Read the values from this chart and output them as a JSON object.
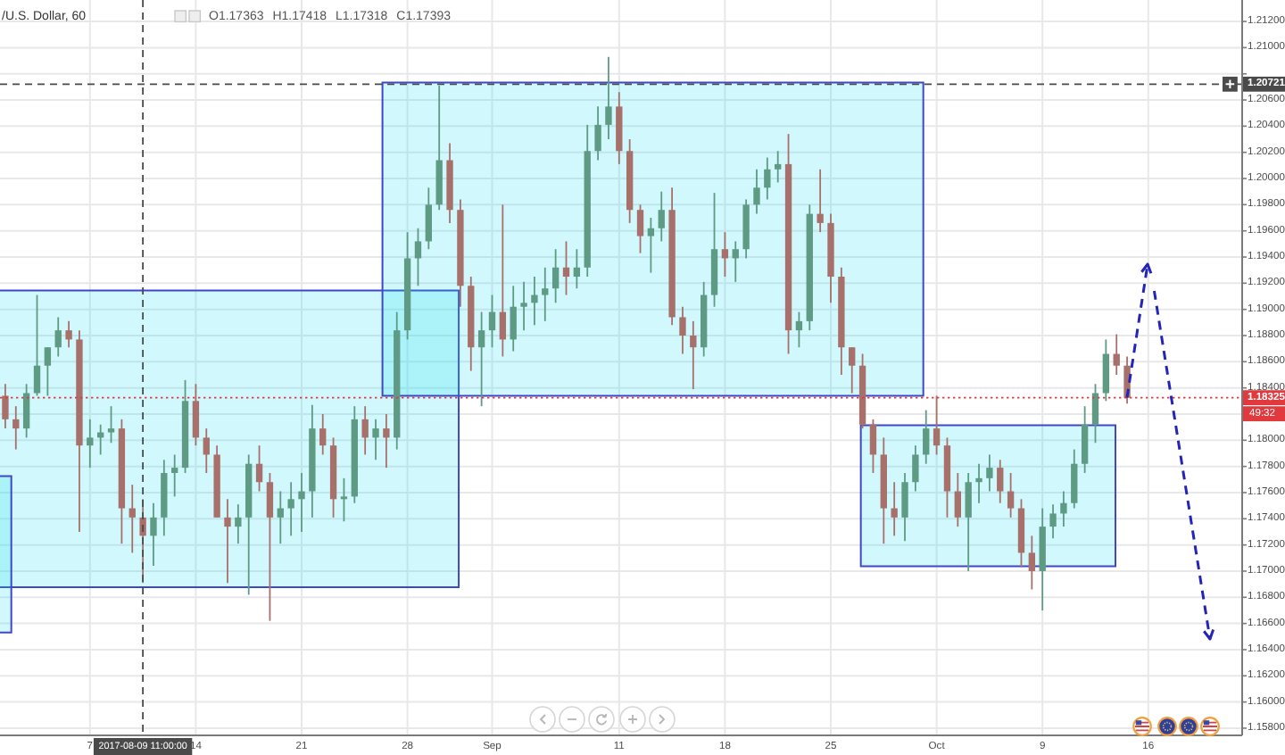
{
  "chart_data": {
    "type": "candlestick",
    "title": "/U.S. Dollar, 60",
    "categories": [
      null,
      null,
      null,
      null,
      null,
      null,
      null,
      null,
      "7",
      null,
      null,
      null,
      null,
      "2017-08-09 11:00:00",
      null,
      null,
      null,
      null,
      "14",
      null,
      null,
      null,
      null,
      null,
      null,
      null,
      null,
      null,
      "21",
      null,
      null,
      null,
      null,
      null,
      null,
      null,
      null,
      null,
      "28",
      null,
      null,
      null,
      null,
      null,
      null,
      null,
      "Sep",
      null,
      null,
      null,
      null,
      null,
      null,
      null,
      null,
      null,
      null,
      null,
      "11",
      null,
      null,
      null,
      null,
      null,
      null,
      null,
      null,
      null,
      "18",
      null,
      null,
      null,
      null,
      null,
      null,
      null,
      null,
      null,
      "25",
      null,
      null,
      null,
      null,
      null,
      null,
      null,
      null,
      null,
      "Oct",
      null,
      null,
      null,
      null,
      null,
      null,
      null,
      null,
      null,
      "9",
      null,
      null,
      null,
      null,
      null,
      null,
      null,
      null,
      null,
      "16",
      null,
      null,
      null,
      null,
      null,
      null,
      null,
      null
    ],
    "ohlc": [
      [
        1.1834,
        1.1843,
        1.1809,
        1.1816
      ],
      [
        1.1816,
        1.1826,
        1.1793,
        1.1809
      ],
      [
        1.1809,
        1.1843,
        1.1802,
        1.1836
      ],
      [
        1.1836,
        1.1911,
        1.1834,
        1.1857
      ],
      [
        1.1857,
        1.1871,
        1.1834,
        1.1871
      ],
      [
        1.1871,
        1.1894,
        1.1864,
        1.1884
      ],
      [
        1.1884,
        1.1891,
        1.1871,
        1.1877
      ],
      [
        1.1877,
        1.1884,
        1.173,
        1.1796
      ],
      [
        1.1796,
        1.1816,
        1.1779,
        1.1802
      ],
      [
        1.1802,
        1.1812,
        1.1789,
        1.1806
      ],
      [
        1.1806,
        1.1826,
        1.1798,
        1.1809
      ],
      [
        1.1809,
        1.1816,
        1.1721,
        1.1748
      ],
      [
        1.1748,
        1.1766,
        1.1714,
        1.1741
      ],
      [
        1.1741,
        1.1755,
        1.1691,
        1.1727
      ],
      [
        1.1727,
        1.1752,
        1.1704,
        1.1741
      ],
      [
        1.1741,
        1.1785,
        1.1727,
        1.1775
      ],
      [
        1.1775,
        1.1789,
        1.1757,
        1.1779
      ],
      [
        1.1779,
        1.1846,
        1.1775,
        1.183
      ],
      [
        1.183,
        1.1843,
        1.1796,
        1.1802
      ],
      [
        1.1802,
        1.1809,
        1.1775,
        1.1789
      ],
      [
        1.1789,
        1.1796,
        1.1741,
        1.1741
      ],
      [
        1.1741,
        1.1755,
        1.1691,
        1.1734
      ],
      [
        1.1734,
        1.1751,
        1.1721,
        1.1741
      ],
      [
        1.1741,
        1.1789,
        1.1682,
        1.1782
      ],
      [
        1.1782,
        1.1796,
        1.1761,
        1.1768
      ],
      [
        1.1768,
        1.1775,
        1.1662,
        1.1741
      ],
      [
        1.1741,
        1.1761,
        1.1721,
        1.1748
      ],
      [
        1.1748,
        1.1768,
        1.1727,
        1.1755
      ],
      [
        1.1755,
        1.1775,
        1.173,
        1.1761
      ],
      [
        1.1761,
        1.1827,
        1.1741,
        1.1809
      ],
      [
        1.1809,
        1.182,
        1.1789,
        1.1796
      ],
      [
        1.1796,
        1.1802,
        1.1741,
        1.1755
      ],
      [
        1.1755,
        1.1771,
        1.1738,
        1.1757
      ],
      [
        1.1757,
        1.1826,
        1.1752,
        1.1816
      ],
      [
        1.1816,
        1.1826,
        1.1789,
        1.1802
      ],
      [
        1.1802,
        1.1816,
        1.1785,
        1.1809
      ],
      [
        1.1809,
        1.182,
        1.1779,
        1.1802
      ],
      [
        1.1802,
        1.1898,
        1.1793,
        1.1884
      ],
      [
        1.1884,
        1.1959,
        1.1877,
        1.1939
      ],
      [
        1.1939,
        1.1962,
        1.1918,
        1.1952
      ],
      [
        1.1952,
        1.1993,
        1.1946,
        1.198
      ],
      [
        1.198,
        1.2071,
        1.1976,
        1.2014
      ],
      [
        1.2014,
        1.2027,
        1.1966,
        1.1976
      ],
      [
        1.1976,
        1.1984,
        1.1902,
        1.1918
      ],
      [
        1.1918,
        1.1925,
        1.1853,
        1.1871
      ],
      [
        1.1871,
        1.1898,
        1.1826,
        1.1884
      ],
      [
        1.1884,
        1.1911,
        1.1871,
        1.1898
      ],
      [
        1.1898,
        1.198,
        1.1864,
        1.1877
      ],
      [
        1.1877,
        1.1918,
        1.1868,
        1.1902
      ],
      [
        1.1902,
        1.1921,
        1.1884,
        1.1905
      ],
      [
        1.1905,
        1.1925,
        1.1888,
        1.1911
      ],
      [
        1.1911,
        1.1932,
        1.1891,
        1.1916
      ],
      [
        1.1916,
        1.1946,
        1.1905,
        1.1932
      ],
      [
        1.1932,
        1.1952,
        1.1911,
        1.1925
      ],
      [
        1.1925,
        1.1946,
        1.1916,
        1.1932
      ],
      [
        1.1932,
        1.2041,
        1.1925,
        1.2021
      ],
      [
        1.2021,
        1.2055,
        1.2014,
        1.2041
      ],
      [
        1.2041,
        1.2093,
        1.203,
        1.2055
      ],
      [
        1.2055,
        1.2066,
        1.2011,
        1.2021
      ],
      [
        1.2021,
        1.203,
        1.1966,
        1.1976
      ],
      [
        1.1976,
        1.198,
        1.1943,
        1.1956
      ],
      [
        1.1956,
        1.197,
        1.1928,
        1.1962
      ],
      [
        1.1962,
        1.199,
        1.1952,
        1.1976
      ],
      [
        1.1976,
        1.1993,
        1.1888,
        1.1894
      ],
      [
        1.1894,
        1.1902,
        1.1866,
        1.188
      ],
      [
        1.188,
        1.1891,
        1.1839,
        1.1871
      ],
      [
        1.1871,
        1.1921,
        1.1864,
        1.1911
      ],
      [
        1.1911,
        1.1989,
        1.1902,
        1.1946
      ],
      [
        1.1946,
        1.1959,
        1.1925,
        1.1939
      ],
      [
        1.1939,
        1.1952,
        1.1921,
        1.1946
      ],
      [
        1.1946,
        1.1984,
        1.1939,
        1.198
      ],
      [
        1.198,
        1.2007,
        1.1973,
        1.1993
      ],
      [
        1.1993,
        1.2016,
        1.1984,
        1.2007
      ],
      [
        1.2007,
        1.2021,
        1.1997,
        1.2011
      ],
      [
        1.2011,
        1.2034,
        1.1866,
        1.1884
      ],
      [
        1.1884,
        1.1898,
        1.1871,
        1.1891
      ],
      [
        1.1891,
        1.198,
        1.1884,
        1.1973
      ],
      [
        1.1973,
        1.2007,
        1.1959,
        1.1966
      ],
      [
        1.1966,
        1.1973,
        1.1905,
        1.1925
      ],
      [
        1.1925,
        1.1932,
        1.185,
        1.1871
      ],
      [
        1.1871,
        1.1871,
        1.1836,
        1.1857
      ],
      [
        1.1857,
        1.1866,
        1.1809,
        1.1812
      ],
      [
        1.1812,
        1.1816,
        1.1775,
        1.1789
      ],
      [
        1.1789,
        1.1802,
        1.1721,
        1.1748
      ],
      [
        1.1748,
        1.1768,
        1.1727,
        1.1741
      ],
      [
        1.1741,
        1.1775,
        1.1723,
        1.1768
      ],
      [
        1.1768,
        1.1796,
        1.1761,
        1.1789
      ],
      [
        1.1789,
        1.1823,
        1.1782,
        1.1809
      ],
      [
        1.1809,
        1.1834,
        1.1789,
        1.1796
      ],
      [
        1.1796,
        1.1802,
        1.1741,
        1.1761
      ],
      [
        1.1761,
        1.1775,
        1.1734,
        1.1741
      ],
      [
        1.1741,
        1.1775,
        1.17,
        1.1768
      ],
      [
        1.1768,
        1.1782,
        1.1752,
        1.1771
      ],
      [
        1.1771,
        1.1789,
        1.1761,
        1.1779
      ],
      [
        1.1779,
        1.1785,
        1.1752,
        1.1761
      ],
      [
        1.1761,
        1.1775,
        1.1741,
        1.1748
      ],
      [
        1.1748,
        1.1755,
        1.1703,
        1.1714
      ],
      [
        1.1714,
        1.1727,
        1.1686,
        1.17
      ],
      [
        1.17,
        1.1748,
        1.167,
        1.1734
      ],
      [
        1.1734,
        1.1751,
        1.1725,
        1.1744
      ],
      [
        1.1744,
        1.1761,
        1.1734,
        1.1752
      ],
      [
        1.1752,
        1.1793,
        1.1748,
        1.1782
      ],
      [
        1.1782,
        1.1826,
        1.1775,
        1.1812
      ],
      [
        1.1812,
        1.1843,
        1.1798,
        1.1836
      ],
      [
        1.1836,
        1.1877,
        1.183,
        1.1866
      ],
      [
        1.1866,
        1.1881,
        1.185,
        1.1857
      ],
      [
        1.1857,
        1.1864,
        1.1828,
        1.18325
      ],
      null,
      null,
      null,
      null,
      null,
      null,
      null,
      null,
      null,
      null
    ],
    "ylim": [
      1.15745,
      1.21364
    ],
    "yticks": [
      {
        "value": 1.158,
        "label": "1.15800"
      },
      {
        "value": 1.16,
        "label": "1.16000"
      },
      {
        "value": 1.162,
        "label": "1.16200"
      },
      {
        "value": 1.164,
        "label": "1.16400"
      },
      {
        "value": 1.166,
        "label": "1.16600"
      },
      {
        "value": 1.168,
        "label": "1.16800"
      },
      {
        "value": 1.17,
        "label": "1.17000"
      },
      {
        "value": 1.172,
        "label": "1.17200"
      },
      {
        "value": 1.174,
        "label": "1.17400"
      },
      {
        "value": 1.176,
        "label": "1.17600"
      },
      {
        "value": 1.178,
        "label": "1.17800"
      },
      {
        "value": 1.18,
        "label": "1.18000"
      },
      {
        "value": 1.182,
        "label": null
      },
      {
        "value": 1.184,
        "label": "1.18400"
      },
      {
        "value": 1.186,
        "label": "1.18600"
      },
      {
        "value": 1.188,
        "label": "1.18800"
      },
      {
        "value": 1.19,
        "label": "1.19000"
      },
      {
        "value": 1.192,
        "label": "1.19200"
      },
      {
        "value": 1.194,
        "label": "1.19400"
      },
      {
        "value": 1.196,
        "label": "1.19600"
      },
      {
        "value": 1.198,
        "label": "1.19800"
      },
      {
        "value": 1.2,
        "label": "1.20000"
      },
      {
        "value": 1.202,
        "label": "1.20200"
      },
      {
        "value": 1.204,
        "label": "1.20400"
      },
      {
        "value": 1.206,
        "label": "1.20600"
      },
      {
        "value": 1.208,
        "label": null
      },
      {
        "value": 1.21,
        "label": "1.21000"
      },
      {
        "value": 1.212,
        "label": "1.21200"
      }
    ],
    "grid": true,
    "ref_lines": [
      {
        "axis": "y",
        "value": 1.18325,
        "label": "1.18325",
        "color": "#e0393e",
        "line_style": "dotted"
      },
      {
        "axis": "y",
        "value": 1.20721,
        "label": "1.20721",
        "color": "#4a4a4a",
        "line_style": "dashed"
      },
      {
        "axis": "x",
        "value": "2017-08-09 11:00:00",
        "label": "2017-08-09 11:00:00",
        "color": "#4a4a4a",
        "line_style": "dashed"
      }
    ],
    "annotations": [
      "O1.17363 H1.17418 L1.17318 C1.17393",
      {
        "text": "49:32",
        "y": 1.18325
      }
    ]
  }
}
